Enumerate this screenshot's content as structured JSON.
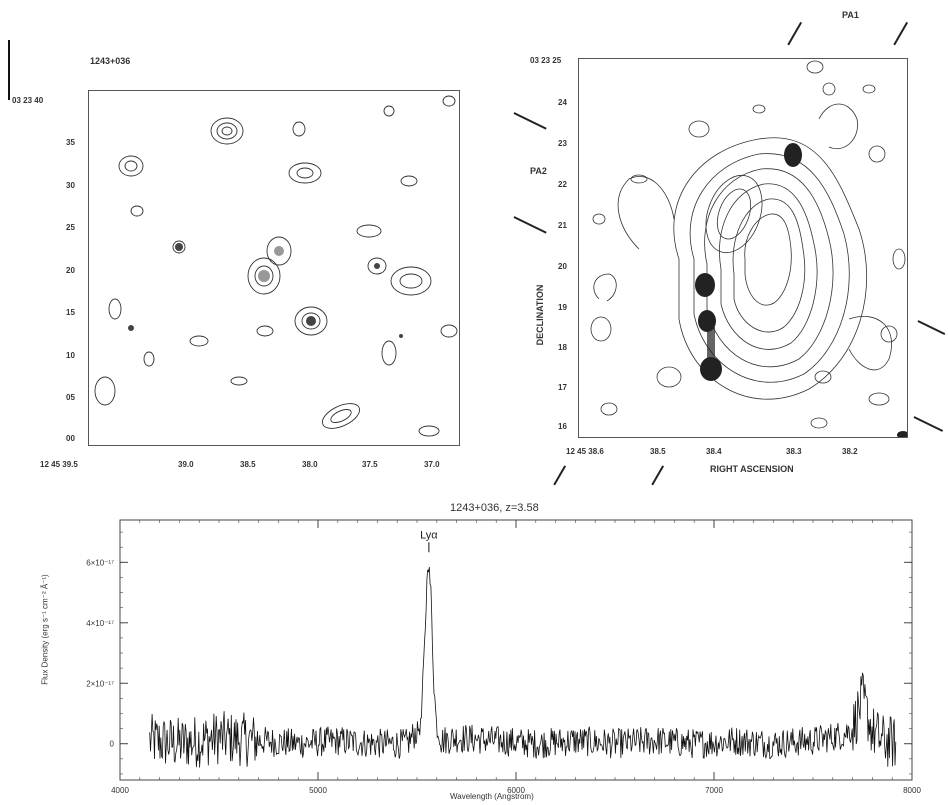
{
  "left_panel": {
    "title": "1243+036",
    "dec_ticks": [
      "03 23 40",
      "35",
      "30",
      "25",
      "20",
      "15",
      "10",
      "05",
      "00"
    ],
    "ra_ticks": [
      "12 45 39.5",
      "39.0",
      "38.5",
      "38.0",
      "37.5",
      "37.0"
    ]
  },
  "right_panel": {
    "dec_ticks": [
      "03 23 25",
      "24",
      "23",
      "22",
      "21",
      "20",
      "19",
      "18",
      "17",
      "16"
    ],
    "ra_ticks": [
      "12 45 38.6",
      "38.5",
      "38.4",
      "38.3",
      "38.2"
    ],
    "xlabel": "RIGHT ASCENSION",
    "ylabel": "DECLINATION",
    "pa_labels": [
      "PA1",
      "PA2"
    ]
  },
  "chart_data": {
    "type": "line",
    "title": "1243+036, z=3.58",
    "xlabel": "Wavelength (Angstrom)",
    "ylabel": "Flux Density (erg s⁻¹ cm⁻² Å⁻¹)",
    "xlim": [
      4000,
      8000
    ],
    "ylim": [
      -1.2e-17,
      7.4e-17
    ],
    "x_ticks": [
      4000,
      5000,
      6000,
      7000,
      8000
    ],
    "x_tick_labels": [
      "4000",
      "5000",
      "6000",
      "7000",
      "8000"
    ],
    "y_ticks": [
      0,
      2e-17,
      4e-17,
      6e-17
    ],
    "y_tick_labels": [
      "0",
      "2×10⁻¹⁷",
      "4×10⁻¹⁷",
      "6×10⁻¹⁷"
    ],
    "series": [
      {
        "x": [
          4150,
          4300,
          4500,
          4700,
          4900,
          5100,
          5300,
          5450,
          5520,
          5540,
          5555,
          5570,
          5585,
          5600,
          5620,
          5700,
          5900,
          6100,
          6300,
          6500,
          6700,
          6900,
          7100,
          7300,
          7500,
          7650,
          7700,
          7750,
          7800,
          7850,
          7920
        ],
        "y": [
          1e-18,
          0.0,
          2e-18,
          1e-18,
          0.0,
          1e-18,
          0.0,
          0.0,
          6e-18,
          3.5e-17,
          6.2e-17,
          5e-17,
          2e-17,
          5e-18,
          1e-18,
          2e-18,
          1e-18,
          0.0,
          1e-18,
          0.0,
          1e-18,
          0.0,
          1e-18,
          0.0,
          1e-18,
          3e-18,
          5e-18,
          1.5e-17,
          4e-18,
          1e-18,
          0.0
        ]
      }
    ],
    "annotations": [
      {
        "text": "Lyα",
        "x": 5560,
        "y": 6.2e-17
      }
    ]
  }
}
